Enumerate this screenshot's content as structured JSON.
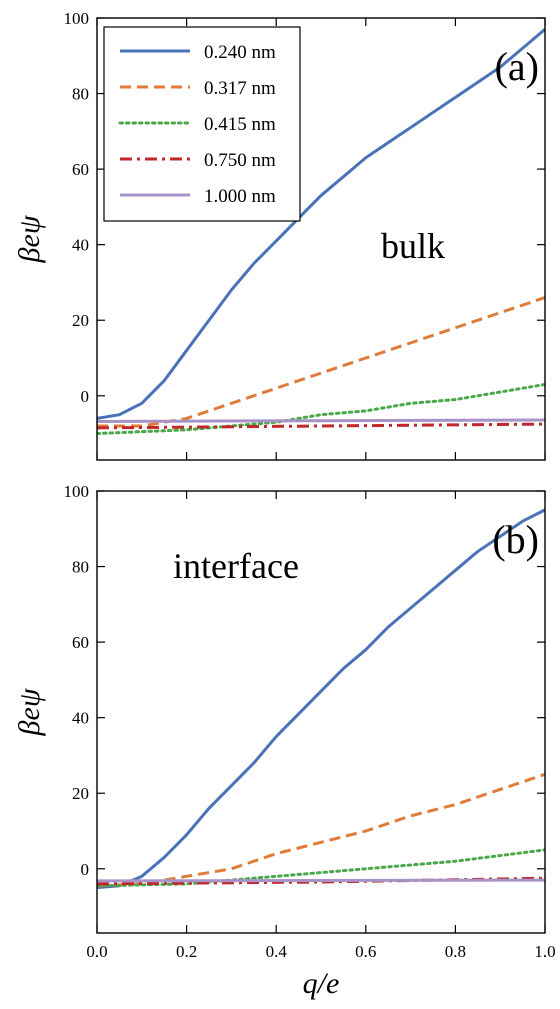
{
  "chart_data": [
    {
      "type": "line",
      "panel_label": "(a)",
      "annotation": "bulk",
      "xlabel": "",
      "ylabel": "βeψ",
      "xlim": [
        0.0,
        1.0
      ],
      "ylim": [
        -17,
        100
      ],
      "xticks": [
        0.0,
        0.2,
        0.4,
        0.6,
        0.8,
        1.0
      ],
      "yticks": [
        0,
        20,
        40,
        60,
        80,
        100
      ],
      "show_x_ticklabels": false,
      "legend_position": "top-left",
      "series": [
        {
          "name": "0.240 nm",
          "color": "#4a72b8",
          "dash": "solid",
          "x": [
            0.0,
            0.05,
            0.1,
            0.15,
            0.2,
            0.25,
            0.3,
            0.35,
            0.4,
            0.45,
            0.5,
            0.55,
            0.6,
            0.65,
            0.7,
            0.75,
            0.8,
            0.85,
            0.9,
            0.95,
            1.0
          ],
          "y": [
            -6,
            -5,
            -2,
            4,
            12,
            20,
            28,
            35,
            41,
            47,
            53,
            58,
            63,
            67,
            71,
            75,
            79,
            83,
            87,
            92,
            97
          ]
        },
        {
          "name": "0.317 nm",
          "color": "#e07b39",
          "dash": "dashed",
          "x": [
            0.0,
            0.1,
            0.2,
            0.3,
            0.4,
            0.5,
            0.6,
            0.7,
            0.8,
            0.9,
            1.0
          ],
          "y": [
            -8,
            -8,
            -6,
            -2,
            2,
            6,
            10,
            14,
            18,
            22,
            26
          ]
        },
        {
          "name": "0.415 nm",
          "color": "#4aa84a",
          "dash": "dotted",
          "x": [
            0.0,
            0.2,
            0.4,
            0.5,
            0.6,
            0.7,
            0.8,
            0.9,
            1.0
          ],
          "y": [
            -10,
            -9,
            -7,
            -5,
            -4,
            -2,
            -1,
            1,
            3
          ]
        },
        {
          "name": "0.750 nm",
          "color": "#c0282c",
          "dash": "dashdot",
          "x": [
            0.0,
            0.5,
            1.0
          ],
          "y": [
            -8.5,
            -8,
            -7.5
          ]
        },
        {
          "name": "1.000 nm",
          "color": "#a893c9",
          "dash": "solid",
          "x": [
            0.0,
            0.5,
            1.0
          ],
          "y": [
            -6.8,
            -6.6,
            -6.4
          ]
        }
      ]
    },
    {
      "type": "line",
      "panel_label": "(b)",
      "annotation": "interface",
      "xlabel": "q/e",
      "ylabel": "βeψ",
      "xlim": [
        0.0,
        1.0
      ],
      "ylim": [
        -17,
        100
      ],
      "xticks": [
        0.0,
        0.2,
        0.4,
        0.6,
        0.8,
        1.0
      ],
      "yticks": [
        0,
        20,
        40,
        60,
        80,
        100
      ],
      "show_x_ticklabels": true,
      "series": [
        {
          "name": "0.240 nm",
          "color": "#4a72b8",
          "dash": "solid",
          "x": [
            0.0,
            0.05,
            0.1,
            0.15,
            0.2,
            0.25,
            0.3,
            0.35,
            0.4,
            0.45,
            0.5,
            0.55,
            0.6,
            0.65,
            0.7,
            0.75,
            0.8,
            0.85,
            0.9,
            0.95,
            1.0
          ],
          "y": [
            -5,
            -4.5,
            -2,
            3,
            9,
            16,
            22,
            28,
            35,
            41,
            47,
            53,
            58,
            64,
            69,
            74,
            79,
            84,
            88,
            92,
            95
          ]
        },
        {
          "name": "0.317 nm",
          "color": "#e07b39",
          "dash": "dashed",
          "x": [
            0.0,
            0.1,
            0.2,
            0.3,
            0.4,
            0.5,
            0.6,
            0.7,
            0.8,
            0.9,
            1.0
          ],
          "y": [
            -4.5,
            -4,
            -2,
            0,
            4,
            7,
            10,
            14,
            17,
            21,
            25
          ]
        },
        {
          "name": "0.415 nm",
          "color": "#4aa84a",
          "dash": "dotted",
          "x": [
            0.0,
            0.2,
            0.4,
            0.5,
            0.6,
            0.7,
            0.8,
            0.9,
            1.0
          ],
          "y": [
            -4.5,
            -4,
            -2,
            -1,
            0,
            1,
            2,
            3.5,
            5
          ]
        },
        {
          "name": "0.750 nm",
          "color": "#c0282c",
          "dash": "dashdot",
          "x": [
            0.0,
            0.5,
            1.0
          ],
          "y": [
            -4,
            -3.5,
            -2.5
          ]
        },
        {
          "name": "1.000 nm",
          "color": "#a893c9",
          "dash": "solid",
          "x": [
            0.0,
            0.5,
            1.0
          ],
          "y": [
            -3.2,
            -3.1,
            -3.0
          ]
        }
      ]
    }
  ]
}
